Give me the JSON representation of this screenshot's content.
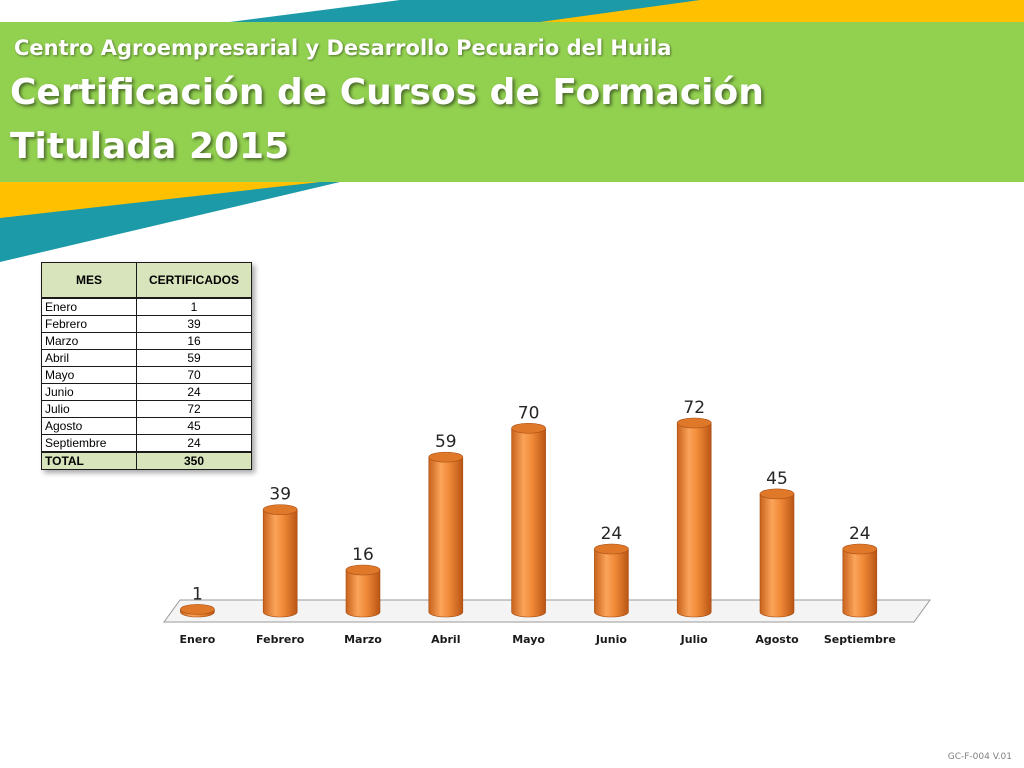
{
  "header": {
    "org_name": "Centro Agroempresarial y Desarrollo Pecuario del Huila",
    "title_line1": "Certificación de Cursos de Formación",
    "title_line2": "Titulada 2015"
  },
  "table": {
    "columns": [
      "MES",
      "CERTIFICADOS"
    ],
    "rows": [
      [
        "Enero",
        "1"
      ],
      [
        "Febrero",
        "39"
      ],
      [
        "Marzo",
        "16"
      ],
      [
        "Abril",
        "59"
      ],
      [
        "Mayo",
        "70"
      ],
      [
        "Junio",
        "24"
      ],
      [
        "Julio",
        "72"
      ],
      [
        "Agosto",
        "45"
      ],
      [
        "Septiembre",
        "24"
      ]
    ],
    "total": [
      "TOTAL",
      "350"
    ]
  },
  "chart_data": {
    "type": "bar",
    "style": "3d-cylinder",
    "categories": [
      "Enero",
      "Febrero",
      "Marzo",
      "Abril",
      "Mayo",
      "Junio",
      "Julio",
      "Agosto",
      "Septiembre"
    ],
    "values": [
      1,
      39,
      16,
      59,
      70,
      24,
      72,
      45,
      24
    ],
    "data_labels": true,
    "title": "",
    "xlabel": "",
    "ylabel": "",
    "ylim": [
      0,
      80
    ],
    "grid": false,
    "legend": "none",
    "bar_color": "#f08a38"
  },
  "colors": {
    "banner_green": "#92d050",
    "banner_yellow": "#ffc000",
    "banner_teal": "#1c9aa8"
  },
  "footer": {
    "code": "GC-F-004 V.01"
  }
}
